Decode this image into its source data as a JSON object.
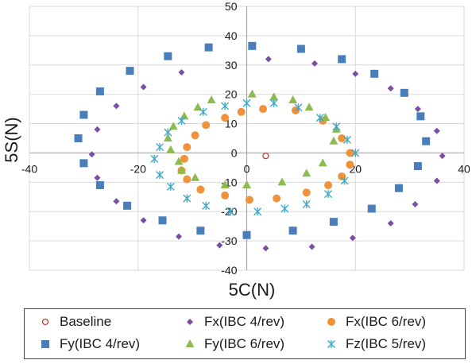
{
  "chart_data": {
    "type": "scatter",
    "xlabel": "5C(N)",
    "ylabel": "5S(N)",
    "xlim": [
      -40,
      40
    ],
    "ylim": [
      -40,
      50
    ],
    "xticks": [
      -40,
      -20,
      0,
      20,
      40
    ],
    "yticks": [
      -40,
      -30,
      -20,
      -10,
      0,
      10,
      20,
      30,
      40,
      50
    ],
    "grid": true,
    "legend_position": "bottom",
    "series": [
      {
        "name": "Baseline",
        "marker": "circle-open",
        "color": "#c0392b",
        "points": [
          [
            3.5,
            -1
          ]
        ]
      },
      {
        "name": "Fx(IBC 4/rev)",
        "marker": "diamond",
        "color": "#7b4ea3",
        "points": [
          [
            4,
            32
          ],
          [
            12.5,
            30.5
          ],
          [
            20,
            27
          ],
          [
            26.5,
            22
          ],
          [
            31.5,
            15
          ],
          [
            35,
            7.5
          ],
          [
            36,
            -1
          ],
          [
            35,
            -9.5
          ],
          [
            31,
            -17.5
          ],
          [
            26.5,
            -24
          ],
          [
            19.5,
            -29
          ],
          [
            12,
            -32
          ],
          [
            3.5,
            -32.5
          ],
          [
            -5,
            -31.5
          ],
          [
            -12.5,
            -28.5
          ],
          [
            -19,
            -23
          ],
          [
            -24,
            -16.5
          ],
          [
            -27.5,
            -8.5
          ],
          [
            -28.5,
            -0.5
          ],
          [
            -27.5,
            8
          ],
          [
            -24,
            16
          ],
          [
            -19,
            22.5
          ],
          [
            -12,
            27.5
          ]
        ]
      },
      {
        "name": "Fx(IBC 6/rev)",
        "marker": "circle",
        "color": "#f0923a",
        "points": [
          [
            3,
            15
          ],
          [
            9,
            14.5
          ],
          [
            14,
            11
          ],
          [
            17.5,
            5
          ],
          [
            19,
            0
          ],
          [
            19,
            -4
          ],
          [
            17.5,
            -8
          ],
          [
            15,
            -11
          ],
          [
            11,
            -13.5
          ],
          [
            5.5,
            -15.5
          ],
          [
            0.5,
            -16
          ],
          [
            -4,
            -14.5
          ],
          [
            -8.5,
            -12.5
          ],
          [
            -11,
            -9
          ],
          [
            -12,
            -6
          ],
          [
            -11.5,
            -2
          ],
          [
            -11,
            2
          ],
          [
            -9.5,
            6
          ],
          [
            -7.5,
            9.5
          ],
          [
            -4,
            12
          ],
          [
            -1,
            14
          ]
        ]
      },
      {
        "name": "Fy(IBC 4/rev)",
        "marker": "square",
        "color": "#4a7ebb",
        "points": [
          [
            1,
            36.5
          ],
          [
            10,
            35.5
          ],
          [
            17.5,
            32
          ],
          [
            23.5,
            27
          ],
          [
            29,
            20.5
          ],
          [
            32,
            12.5
          ],
          [
            33,
            4
          ],
          [
            31.5,
            -4.5
          ],
          [
            28,
            -12
          ],
          [
            23,
            -19
          ],
          [
            16,
            -23.5
          ],
          [
            8.5,
            -26.5
          ],
          [
            0,
            -28
          ],
          [
            -8.5,
            -26.5
          ],
          [
            -15.5,
            -23
          ],
          [
            -22,
            -18
          ],
          [
            -27,
            -11
          ],
          [
            -30,
            -3.5
          ],
          [
            -31,
            5
          ],
          [
            -30,
            13
          ],
          [
            -27,
            21
          ],
          [
            -21.5,
            28
          ],
          [
            -14.5,
            33
          ],
          [
            -7,
            36
          ]
        ]
      },
      {
        "name": "Fy(IBC 6/rev)",
        "marker": "triangle",
        "color": "#8cbb4f",
        "points": [
          [
            1,
            20
          ],
          [
            5,
            19
          ],
          [
            8.5,
            18
          ],
          [
            11.5,
            15.5
          ],
          [
            14.5,
            12
          ],
          [
            16.5,
            8
          ],
          [
            16,
            4
          ],
          [
            14,
            -3.5
          ],
          [
            11,
            -7
          ],
          [
            6.5,
            -10
          ],
          [
            0,
            -11
          ],
          [
            -4,
            -11
          ],
          [
            -9.5,
            -8.5
          ],
          [
            -12,
            -6
          ],
          [
            -12.5,
            -3
          ],
          [
            -14,
            1
          ],
          [
            -14.5,
            5
          ],
          [
            -13.5,
            9
          ],
          [
            -11.5,
            12.5
          ],
          [
            -9,
            15.5
          ],
          [
            -6.5,
            18
          ]
        ]
      },
      {
        "name": "Fz(IBC 5/rev)",
        "marker": "star",
        "color": "#3fa9c9",
        "points": [
          [
            0,
            17
          ],
          [
            5,
            17
          ],
          [
            9.5,
            15.5
          ],
          [
            13.5,
            12
          ],
          [
            16.5,
            9
          ],
          [
            18.5,
            4.5
          ],
          [
            20,
            0
          ],
          [
            18,
            -9.5
          ],
          [
            15,
            -14
          ],
          [
            11,
            -17.5
          ],
          [
            7,
            -19
          ],
          [
            2,
            -20
          ],
          [
            -3,
            -20
          ],
          [
            -7.5,
            -18
          ],
          [
            -11,
            -15.5
          ],
          [
            -14,
            -11.5
          ],
          [
            -16,
            -7.5
          ],
          [
            -17,
            -2
          ],
          [
            -16,
            2
          ],
          [
            -14.5,
            7
          ],
          [
            -12,
            11
          ],
          [
            -8,
            14
          ],
          [
            -4,
            16
          ]
        ]
      }
    ]
  }
}
